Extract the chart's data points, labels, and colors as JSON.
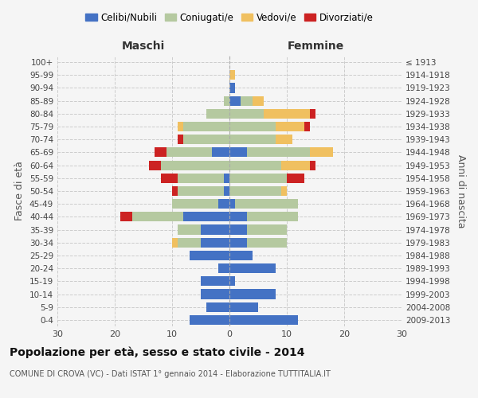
{
  "age_groups": [
    "0-4",
    "5-9",
    "10-14",
    "15-19",
    "20-24",
    "25-29",
    "30-34",
    "35-39",
    "40-44",
    "45-49",
    "50-54",
    "55-59",
    "60-64",
    "65-69",
    "70-74",
    "75-79",
    "80-84",
    "85-89",
    "90-94",
    "95-99",
    "100+"
  ],
  "birth_years": [
    "2009-2013",
    "2004-2008",
    "1999-2003",
    "1994-1998",
    "1989-1993",
    "1984-1988",
    "1979-1983",
    "1974-1978",
    "1969-1973",
    "1964-1968",
    "1959-1963",
    "1954-1958",
    "1949-1953",
    "1944-1948",
    "1939-1943",
    "1934-1938",
    "1929-1933",
    "1924-1928",
    "1919-1923",
    "1914-1918",
    "≤ 1913"
  ],
  "colors": {
    "celibi": "#4472c4",
    "coniugati": "#b5c9a0",
    "vedovi": "#f0c060",
    "divorziati": "#cc2222"
  },
  "maschi": {
    "celibi": [
      7,
      4,
      5,
      5,
      2,
      7,
      5,
      5,
      8,
      2,
      1,
      1,
      0,
      3,
      0,
      0,
      0,
      0,
      0,
      0,
      0
    ],
    "coniugati": [
      0,
      0,
      0,
      0,
      0,
      0,
      4,
      4,
      9,
      8,
      8,
      8,
      12,
      8,
      8,
      8,
      4,
      1,
      0,
      0,
      0
    ],
    "vedovi": [
      0,
      0,
      0,
      0,
      0,
      0,
      1,
      0,
      0,
      0,
      0,
      0,
      0,
      0,
      0,
      1,
      0,
      0,
      0,
      0,
      0
    ],
    "divorziati": [
      0,
      0,
      0,
      0,
      0,
      0,
      0,
      0,
      2,
      0,
      1,
      3,
      2,
      2,
      1,
      0,
      0,
      0,
      0,
      0,
      0
    ]
  },
  "femmine": {
    "celibi": [
      12,
      5,
      8,
      1,
      8,
      4,
      3,
      3,
      3,
      1,
      0,
      0,
      0,
      3,
      0,
      0,
      0,
      2,
      1,
      0,
      0
    ],
    "coniugati": [
      0,
      0,
      0,
      0,
      0,
      0,
      7,
      7,
      9,
      11,
      9,
      10,
      9,
      11,
      8,
      8,
      6,
      2,
      0,
      0,
      0
    ],
    "vedovi": [
      0,
      0,
      0,
      0,
      0,
      0,
      0,
      0,
      0,
      0,
      1,
      0,
      5,
      4,
      3,
      5,
      8,
      2,
      0,
      1,
      0
    ],
    "divorziati": [
      0,
      0,
      0,
      0,
      0,
      0,
      0,
      0,
      0,
      0,
      0,
      3,
      1,
      0,
      0,
      1,
      1,
      0,
      0,
      0,
      0
    ]
  },
  "title": "Popolazione per età, sesso e stato civile - 2014",
  "subtitle": "COMUNE DI CROVA (VC) - Dati ISTAT 1° gennaio 2014 - Elaborazione TUTTITALIA.IT",
  "xlabel_left": "Maschi",
  "xlabel_right": "Femmine",
  "ylabel_left": "Fasce di età",
  "ylabel_right": "Anni di nascita",
  "xlim": 30,
  "background_color": "#f5f5f5",
  "grid_color": "#cccccc"
}
